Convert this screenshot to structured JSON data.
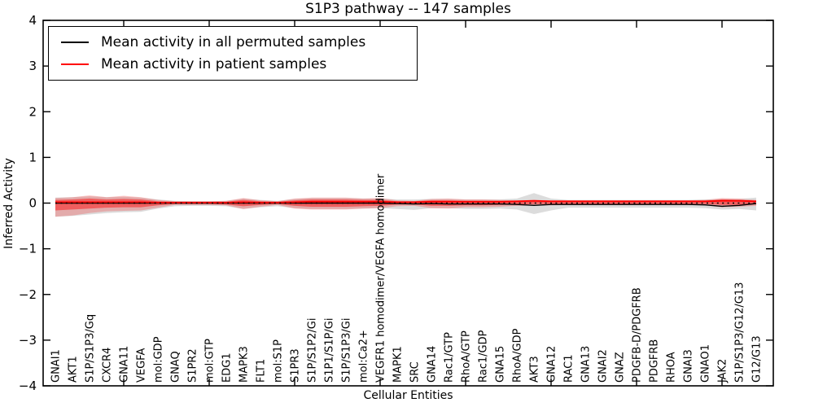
{
  "chart_data": {
    "type": "line",
    "title": "S1P3 pathway -- 147 samples",
    "xlabel": "Cellular Entities",
    "ylabel": "Inferred Activity",
    "ylim": [
      -4,
      4
    ],
    "yticks": [
      4,
      3,
      2,
      1,
      0,
      -1,
      -2,
      -3,
      -4
    ],
    "ytick_labels": [
      "4",
      "3",
      "2",
      "1",
      "0",
      "−1",
      "−2",
      "−3",
      "−4"
    ],
    "xtick_indices": [
      4,
      9,
      14,
      19,
      24,
      29,
      34,
      39
    ],
    "grid": "off",
    "legend": {
      "position": "upper left",
      "items": [
        {
          "label": "Mean activity in all permuted samples",
          "color": "#000000",
          "style": "solid"
        },
        {
          "label": "Mean activity in patient samples",
          "color": "#ff0000",
          "style": "solid"
        }
      ]
    },
    "zero_line": {
      "y": 0,
      "color": "#000000",
      "style": "dotted"
    },
    "categories": [
      "GNAI1",
      "AKT1",
      "S1P/S1P3/Gq",
      "CXCR4",
      "GNA11",
      "VEGFA",
      "mol:GDP",
      "GNAQ",
      "S1PR2",
      "mol:GTP",
      "EDG1",
      "MAPK3",
      "FLT1",
      "mol:S1P",
      "S1PR3",
      "S1P/S1P2/Gi",
      "S1P1/S1P/Gi",
      "S1P/S1P3/Gi",
      "mol:Ca2+",
      "VEGFR1 homodimer/VEGFA homodimer",
      "MAPK1",
      "SRC",
      "GNA14",
      "Rac1/GTP",
      "RhoA/GTP",
      "Rac1/GDP",
      "GNA15",
      "RhoA/GDP",
      "AKT3",
      "GNA12",
      "RAC1",
      "GNA13",
      "GNAI2",
      "GNAZ",
      "PDGFB-D/PDGFRB",
      "PDGFRB",
      "RHOA",
      "GNAI3",
      "GNAO1",
      "JAK2",
      "S1P/S1P3/G12/G13",
      "G12/G13"
    ],
    "series": [
      {
        "name": "Mean activity in all permuted samples",
        "color": "#000000",
        "style": "solid",
        "values": [
          0,
          0,
          0,
          0,
          0,
          0,
          0,
          0,
          0,
          0,
          0,
          0,
          0,
          0,
          0,
          0,
          0,
          0,
          0,
          0,
          -0.01,
          -0.02,
          -0.01,
          -0.02,
          -0.02,
          -0.02,
          -0.02,
          -0.03,
          -0.05,
          -0.03,
          -0.03,
          -0.03,
          -0.03,
          -0.03,
          -0.03,
          -0.03,
          -0.03,
          -0.03,
          -0.04,
          -0.07,
          -0.05,
          -0.01
        ]
      },
      {
        "name": "Mean activity in patient samples",
        "color": "#ff0000",
        "style": "solid",
        "values": [
          0.02,
          0.02,
          0.02,
          0.02,
          0.02,
          0.02,
          0.01,
          0.01,
          0.01,
          0.01,
          0.01,
          0.02,
          0.01,
          0.01,
          0.02,
          0.03,
          0.03,
          0.03,
          0.03,
          0.03,
          0.02,
          0.02,
          0.03,
          0.03,
          0.03,
          0.03,
          0.03,
          0.04,
          0.05,
          0.04,
          0.04,
          0.04,
          0.04,
          0.04,
          0.04,
          0.04,
          0.04,
          0.04,
          0.04,
          0.05,
          0.05,
          0.04
        ]
      }
    ],
    "bands": [
      {
        "name": "permuted-samples-range",
        "color": "#808080",
        "opacity": 0.28,
        "upper": [
          0.12,
          0.13,
          0.15,
          0.13,
          0.14,
          0.12,
          0.08,
          0.05,
          0.04,
          0.04,
          0.05,
          0.1,
          0.07,
          0.05,
          0.09,
          0.11,
          0.11,
          0.11,
          0.1,
          0.1,
          0.08,
          0.08,
          0.09,
          0.09,
          0.08,
          0.08,
          0.08,
          0.1,
          0.22,
          0.1,
          0.07,
          0.07,
          0.07,
          0.07,
          0.07,
          0.07,
          0.07,
          0.07,
          0.08,
          0.09,
          0.09,
          0.12
        ],
        "lower": [
          -0.3,
          -0.28,
          -0.25,
          -0.22,
          -0.2,
          -0.19,
          -0.12,
          -0.07,
          -0.06,
          -0.06,
          -0.07,
          -0.13,
          -0.09,
          -0.07,
          -0.11,
          -0.13,
          -0.13,
          -0.13,
          -0.12,
          -0.11,
          -0.13,
          -0.15,
          -0.11,
          -0.11,
          -0.13,
          -0.13,
          -0.12,
          -0.14,
          -0.24,
          -0.16,
          -0.1,
          -0.1,
          -0.1,
          -0.1,
          -0.1,
          -0.1,
          -0.1,
          -0.1,
          -0.11,
          -0.14,
          -0.13,
          -0.16
        ]
      },
      {
        "name": "patient-samples-range-outer",
        "color": "#ff0000",
        "opacity": 0.22,
        "upper": [
          0.11,
          0.13,
          0.17,
          0.13,
          0.16,
          0.13,
          0.07,
          0.04,
          0.04,
          0.04,
          0.05,
          0.11,
          0.06,
          0.04,
          0.1,
          0.12,
          0.12,
          0.12,
          0.1,
          0.11,
          0.06,
          0.05,
          0.09,
          0.1,
          0.08,
          0.08,
          0.07,
          0.06,
          0.07,
          0.06,
          0.06,
          0.06,
          0.06,
          0.06,
          0.06,
          0.06,
          0.06,
          0.06,
          0.07,
          0.11,
          0.1,
          0.07
        ],
        "lower": [
          -0.3,
          -0.27,
          -0.22,
          -0.18,
          -0.17,
          -0.16,
          -0.1,
          -0.04,
          -0.04,
          -0.04,
          -0.05,
          -0.13,
          -0.08,
          -0.04,
          -0.12,
          -0.14,
          -0.14,
          -0.14,
          -0.12,
          -0.11,
          -0.07,
          -0.06,
          -0.11,
          -0.12,
          -0.09,
          -0.09,
          -0.08,
          -0.06,
          -0.05,
          -0.05,
          -0.04,
          -0.04,
          -0.04,
          -0.04,
          -0.04,
          -0.04,
          -0.04,
          -0.04,
          -0.05,
          -0.09,
          -0.08,
          -0.06
        ]
      },
      {
        "name": "patient-samples-range-inner",
        "color": "#ff0000",
        "opacity": 0.45,
        "upper": [
          0.07,
          0.08,
          0.1,
          0.08,
          0.09,
          0.08,
          0.04,
          0.03,
          0.03,
          0.03,
          0.03,
          0.07,
          0.04,
          0.03,
          0.06,
          0.08,
          0.08,
          0.08,
          0.07,
          0.07,
          0.04,
          0.04,
          0.06,
          0.06,
          0.05,
          0.05,
          0.05,
          0.05,
          0.06,
          0.05,
          0.05,
          0.05,
          0.05,
          0.05,
          0.05,
          0.05,
          0.05,
          0.05,
          0.05,
          0.08,
          0.07,
          0.05
        ],
        "lower": [
          -0.16,
          -0.14,
          -0.12,
          -0.1,
          -0.09,
          -0.09,
          -0.05,
          -0.02,
          -0.02,
          -0.02,
          -0.03,
          -0.07,
          -0.04,
          -0.02,
          -0.06,
          -0.08,
          -0.08,
          -0.08,
          -0.07,
          -0.06,
          -0.03,
          -0.03,
          -0.06,
          -0.06,
          -0.05,
          -0.05,
          -0.04,
          -0.03,
          -0.02,
          -0.02,
          -0.02,
          -0.02,
          -0.02,
          -0.02,
          -0.02,
          -0.02,
          -0.02,
          -0.02,
          -0.02,
          -0.04,
          -0.04,
          -0.03
        ]
      }
    ]
  }
}
